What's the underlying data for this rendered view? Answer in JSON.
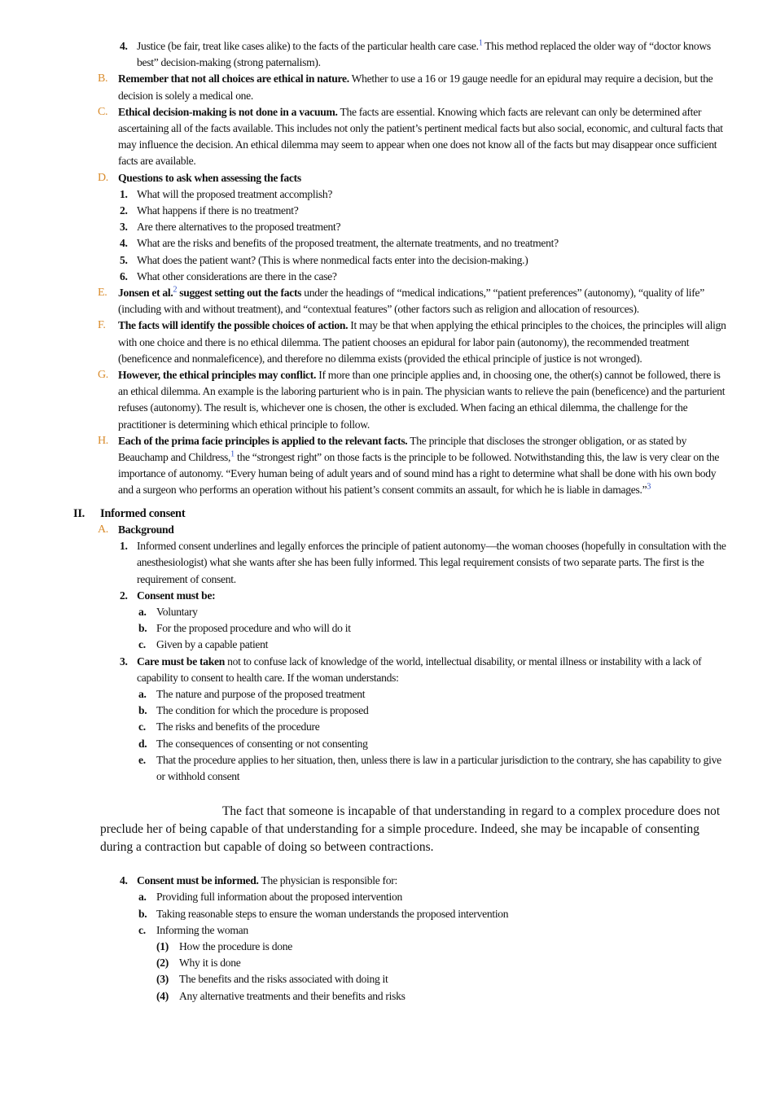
{
  "top": [
    {
      "marker": "4.",
      "text": "Justice (be fair, treat like cases alike) to the facts of the particular health care case.",
      "note": "1",
      "text2": "This method replaced the older way of “doctor knows best” decision-making (strong paternalism)."
    }
  ],
  "section1": [
    {
      "marker": "B.",
      "lead": "Remember that not all choices are ethical in nature.",
      "text": "Whether to use a 16 or 19 gauge needle for an epidural may require a decision, but the decision is solely a medical one."
    },
    {
      "marker": "C.",
      "lead": "Ethical decision-making is not done in a vacuum.",
      "text": "The facts are essential. Knowing which facts are relevant can only be determined after ascertaining all of the facts available. This includes not only the patient’s pertinent medical facts but also social, economic, and cultural facts that may influence the decision. An ethical dilemma may seem to appear when one does not know all of the facts but may disappear once sufficient facts are available."
    },
    {
      "marker": "D.",
      "lead": "Questions to ask when assessing the facts",
      "items": [
        {
          "marker": "1.",
          "text": "What will the proposed treatment accomplish?"
        },
        {
          "marker": "2.",
          "text": "What happens if there is no treatment?"
        },
        {
          "marker": "3.",
          "text": "Are there alternatives to the proposed treatment?"
        },
        {
          "marker": "4.",
          "text": "What are the risks and benefits of the proposed treatment, the alternate treatments, and no treatment?"
        },
        {
          "marker": "5.",
          "text": "What does the patient want? (This is where nonmedical facts enter into the decision-making.)"
        },
        {
          "marker": "6.",
          "text": "What other considerations are there in the case?"
        }
      ]
    },
    {
      "marker": "E.",
      "lead": "Jonsen et al.",
      "note": "2",
      "lead2": "suggest setting out the facts",
      "text": "under the headings of “medical indications,” “patient preferences” (autonomy), “quality of life” (including with and without treatment), and “contextual features” (other factors such as religion and allocation of resources)."
    },
    {
      "marker": "F.",
      "lead": "The facts will identify the possible choices of action.",
      "text": "It may be that when applying the ethical principles to the choices, the principles will align with one choice and there is no ethical dilemma. The patient chooses an epidural for labor pain (autonomy), the recommended treatment (beneficence and nonmaleficence), and therefore no dilemma exists (provided the ethical principle of justice is not wronged)."
    },
    {
      "marker": "G.",
      "lead": "However, the ethical principles may conflict.",
      "text": "If more than one principle applies and, in choosing one, the other(s) cannot be followed, there is an ethical dilemma. An example is the laboring parturient who is in pain. The physician wants to relieve the pain (beneficence) and the parturient refuses (autonomy). The result is, whichever one is chosen, the other is excluded. When facing an ethical dilemma, the challenge for the practitioner is determining which ethical principle to follow."
    },
    {
      "marker": "H.",
      "lead": "Each of the prima facie principles is applied to the relevant facts.",
      "text": "The principle that discloses the stronger obligation, or as stated by Beauchamp and Childress,",
      "note": "1",
      "text2": "the “strongest right” on those facts is the principle to be followed. Notwithstanding this, the law is very clear on the importance of autonomy. “Every human being of adult years and of sound mind has a right to determine what shall be done with his own body and a surgeon who performs an operation without his patient’s consent commits an assault, for which he is liable in damages.”",
      "note2": "3"
    }
  ],
  "section2": [
    {
      "marker": "II.",
      "lead": "Informed consent",
      "items": [
        {
          "marker": "A.",
          "lead": "Background",
          "items": [
            {
              "marker": "1.",
              "text": "Informed consent underlines and legally enforces the principle of patient autonomy—the woman chooses (hopefully in consultation with the anesthesiologist) what she wants after she has been fully informed. This legal requirement consists of two separate parts. The first is the requirement of consent."
            },
            {
              "marker": "2.",
              "lead": "Consent must be:",
              "items": [
                {
                  "marker": "a.",
                  "text": "Voluntary"
                },
                {
                  "marker": "b.",
                  "text": "For the proposed procedure and who will do it"
                },
                {
                  "marker": "c.",
                  "text": "Given by a capable patient"
                }
              ]
            },
            {
              "marker": "3.",
              "lead": "Care must be taken",
              "text": "not to confuse lack of knowledge of the world, intellectual disability, or mental illness or instability with a lack of capability to consent to health care. If the woman understands:",
              "items": [
                {
                  "marker": "a.",
                  "text": "The nature and purpose of the proposed treatment"
                },
                {
                  "marker": "b.",
                  "text": "The condition for which the procedure is proposed"
                },
                {
                  "marker": "c.",
                  "text": "The risks and benefits of the procedure"
                },
                {
                  "marker": "d.",
                  "text": "The consequences of consenting or not consenting"
                },
                {
                  "marker": "e.",
                  "text": "That the procedure applies to her situation, then, unless there is law in a particular jurisdiction to the contrary, she has capability to give or withhold consent"
                }
              ]
            }
          ]
        }
      ]
    }
  ],
  "quote": "The fact that someone is incapable of that understanding in regard to a complex procedure does not preclude her of being capable of that understanding for a simple procedure. Indeed, she may be incapable of consenting during a contraction but capable of doing so between contractions.",
  "continued": [
    {
      "marker": "4.",
      "lead": "Consent must be informed.",
      "text": "The physician is responsible for:",
      "items": [
        {
          "marker": "a.",
          "text": "Providing full information about the proposed intervention"
        },
        {
          "marker": "b.",
          "text": "Taking reasonable steps to ensure the woman understands the proposed intervention"
        },
        {
          "marker": "c.",
          "text": "Informing the woman",
          "items": [
            {
              "marker": "(1)",
              "text": "How the procedure is done"
            },
            {
              "marker": "(2)",
              "text": "Why it is done"
            },
            {
              "marker": "(3)",
              "text": "The benefits and the risks associated with doing it"
            },
            {
              "marker": "(4)",
              "text": "Any alternative treatments and their benefits and risks"
            }
          ]
        }
      ]
    }
  ]
}
